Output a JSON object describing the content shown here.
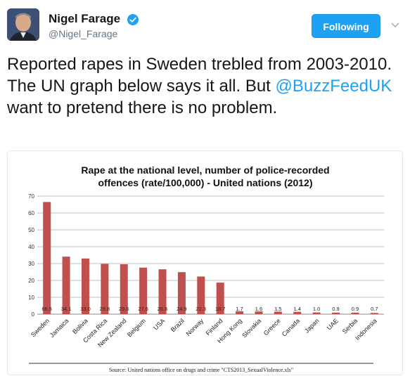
{
  "tweet": {
    "author_name": "Nigel Farage",
    "author_handle": "@Nigel_Farage",
    "follow_label": "Following",
    "text_before": "Reported rapes in Sweden trebled from 2003-2010. The UN graph below says it all. But ",
    "mention": "@BuzzFeedUK",
    "text_after": " want to pretend there is no problem."
  },
  "icons": {
    "verified": "verified-badge-icon",
    "menu": "chevron-down-icon"
  },
  "colors": {
    "accent": "#1da1f2",
    "bar": "#c0504d"
  },
  "chart_data": {
    "type": "bar",
    "title_line1": "Rape at the national level, number of police-recorded",
    "title_line2": "offences (rate/100,000) - United nations (2012)",
    "categories": [
      "Sweden",
      "Jamaica",
      "Bolivia",
      "Costa Rica",
      "New Zealand",
      "Belgium",
      "USA",
      "Brazil",
      "Norway",
      "Finland",
      "Hong Kong",
      "Slovakia",
      "Greece",
      "Canada",
      "Japan",
      "UAE",
      "Serbia",
      "Indonesia"
    ],
    "values": [
      66.5,
      34.1,
      33.0,
      29.8,
      29.6,
      27.6,
      26.6,
      24.9,
      22.3,
      18.7,
      1.7,
      1.6,
      1.5,
      1.4,
      1.0,
      0.9,
      0.9,
      0.7
    ],
    "value_labels": [
      "66.5",
      "34.1",
      "33.0",
      "29.8",
      "29.6",
      "27.6",
      "26.6",
      "24.9",
      "22.3",
      "18.7",
      "1.7",
      "1.6",
      "1.5",
      "1.4",
      "1.0",
      "0.9",
      "0.9",
      "0.7"
    ],
    "yticks": [
      "0",
      "10",
      "20",
      "30",
      "40",
      "50",
      "60",
      "70"
    ],
    "ylim": [
      0,
      70
    ],
    "grid": true,
    "source": "Source: United nations office on drugs and crime \"CTS2013_SexualViolence.xls\""
  }
}
